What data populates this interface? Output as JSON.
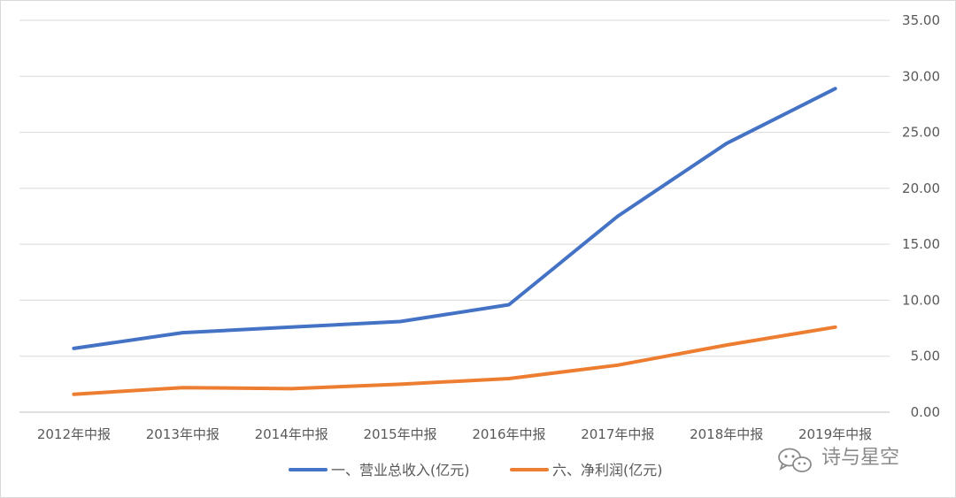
{
  "chart_data": {
    "type": "line",
    "title": "",
    "xlabel": "",
    "ylabel": "",
    "categories": [
      "2012年中报",
      "2013年中报",
      "2014年中报",
      "2015年中报",
      "2016年中报",
      "2017年中报",
      "2018年中报",
      "2019年中报"
    ],
    "y_axis_side": "right",
    "ylim": [
      0,
      35
    ],
    "y_ticks": [
      "0.00",
      "5.00",
      "10.00",
      "15.00",
      "20.00",
      "25.00",
      "30.00",
      "35.00"
    ],
    "grid": true,
    "legend_position": "bottom",
    "series": [
      {
        "name": "一、营业总收入(亿元)",
        "color": "#4472C4",
        "values": [
          5.7,
          7.1,
          7.6,
          8.1,
          9.6,
          17.5,
          24.0,
          28.9
        ]
      },
      {
        "name": "六、净利润(亿元)",
        "color": "#ED7D31",
        "values": [
          1.6,
          2.2,
          2.1,
          2.5,
          3.0,
          4.2,
          6.0,
          7.6
        ]
      }
    ]
  },
  "watermark": {
    "text": "诗与星空",
    "icon": "wechat-icon"
  }
}
